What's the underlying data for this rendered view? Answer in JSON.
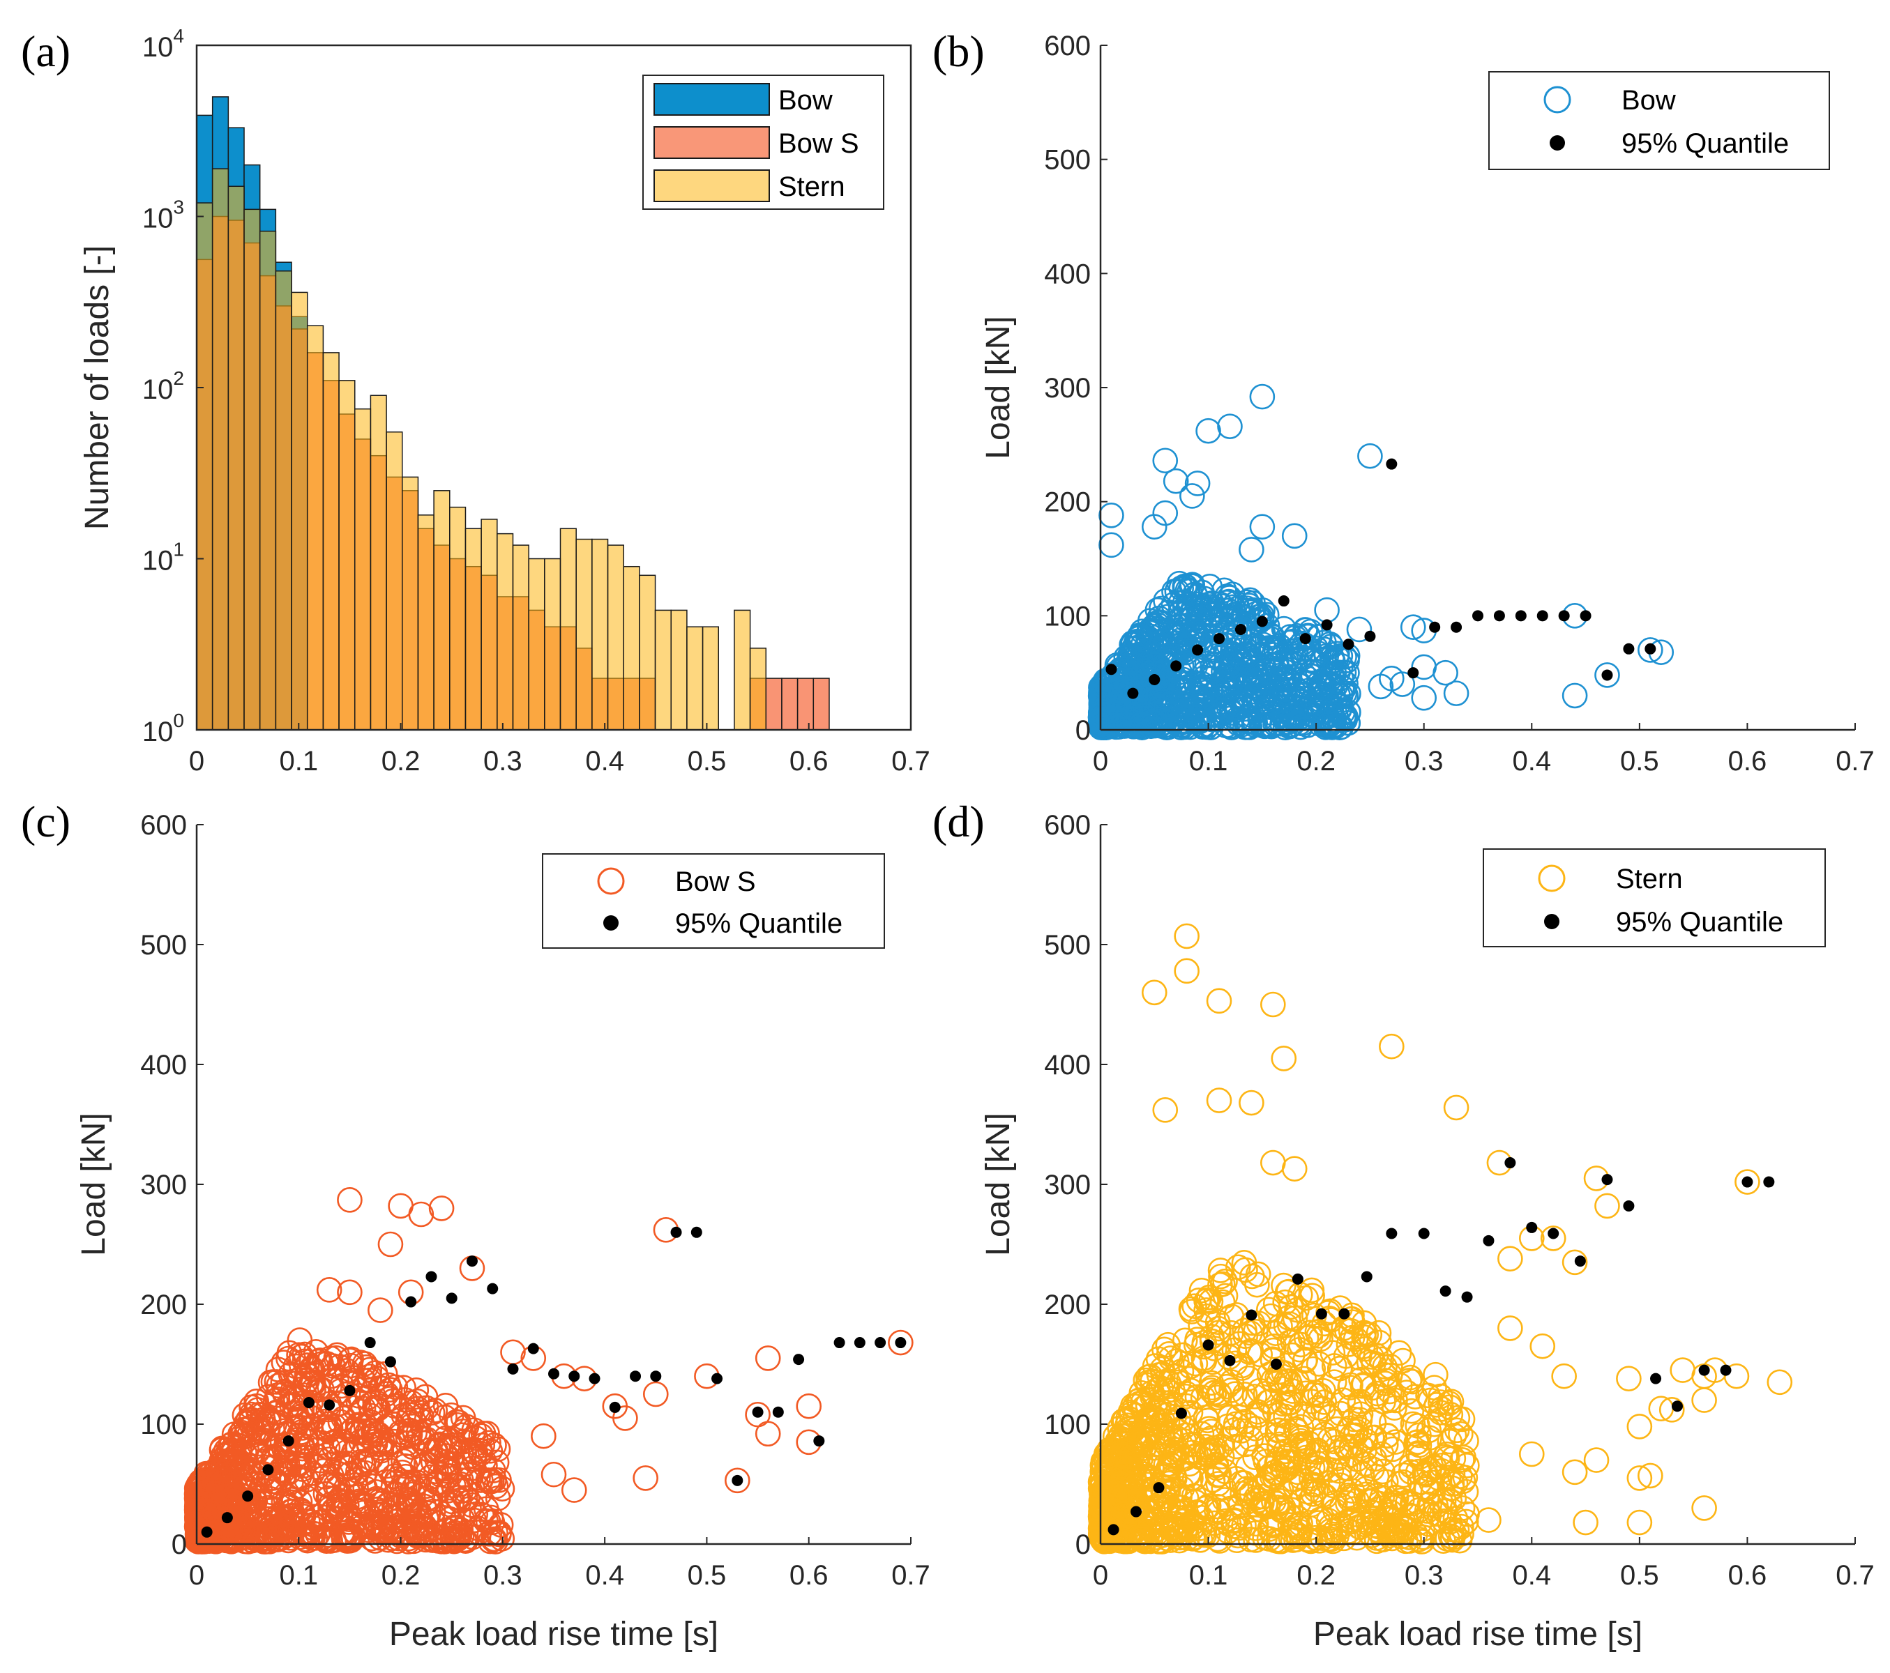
{
  "chart_data": [
    {
      "panel": "(a)",
      "type": "bar",
      "subtype": "histogram",
      "ylog": true,
      "xlabel": "",
      "ylabel": "Number of loads [-]",
      "xlim": [
        0,
        0.7
      ],
      "ylim": [
        1,
        10000
      ],
      "xticks": [
        0,
        0.1,
        0.2,
        0.3,
        0.4,
        0.5,
        0.6,
        0.7
      ],
      "xtick_labels": [
        "0",
        "0.1",
        "0.2",
        "0.3",
        "0.4",
        "0.5",
        "0.6",
        "0.7"
      ],
      "ytick_labels": [
        {
          "base": "10",
          "exp": "0"
        },
        {
          "base": "10",
          "exp": "1"
        },
        {
          "base": "10",
          "exp": "2"
        },
        {
          "base": "10",
          "exp": "3"
        },
        {
          "base": "10",
          "exp": "4"
        }
      ],
      "bin_width": 0.0155,
      "bin_edges_start": 0,
      "series": [
        {
          "name": "Bow",
          "color": "#0d8fcc",
          "values": [
            3900,
            5000,
            3300,
            2000,
            1100,
            540,
            260,
            0,
            0,
            0,
            0,
            0,
            0,
            0,
            0,
            0,
            0,
            0,
            0,
            0,
            0,
            0,
            0,
            0,
            0,
            0,
            0,
            0,
            0,
            0,
            0,
            0,
            0,
            0,
            0,
            0,
            0,
            0,
            0,
            0
          ]
        },
        {
          "name": "Bow S",
          "color": "#f66b3e",
          "values": [
            560,
            1000,
            950,
            700,
            450,
            300,
            220,
            160,
            110,
            70,
            50,
            40,
            30,
            25,
            15,
            12,
            10,
            9,
            8,
            6,
            6,
            5,
            4,
            4,
            3,
            2,
            2,
            2,
            2,
            0,
            0,
            0,
            0,
            0,
            0,
            2,
            2,
            2,
            2,
            2
          ]
        },
        {
          "name": "Stern",
          "color": "#fdb715",
          "values": [
            1200,
            1900,
            1500,
            1100,
            820,
            480,
            360,
            230,
            160,
            110,
            75,
            90,
            55,
            30,
            18,
            25,
            20,
            15,
            17,
            14,
            12,
            10,
            10,
            15,
            13,
            13,
            12,
            9,
            8,
            5,
            5,
            4,
            4,
            0,
            5,
            3,
            0,
            0,
            0,
            0
          ]
        }
      ],
      "legend": {
        "position": "top-right",
        "entries": [
          "Bow",
          "Bow S",
          "Stern"
        ]
      }
    },
    {
      "panel": "(b)",
      "type": "scatter",
      "xlabel": "",
      "ylabel": "Load [kN]",
      "xlim": [
        0,
        0.7
      ],
      "ylim": [
        0,
        600
      ],
      "xticks": [
        0,
        0.1,
        0.2,
        0.3,
        0.4,
        0.5,
        0.6,
        0.7
      ],
      "xtick_labels": [
        "0",
        "0.1",
        "0.2",
        "0.3",
        "0.4",
        "0.5",
        "0.6",
        "0.7"
      ],
      "yticks": [
        0,
        100,
        200,
        300,
        400,
        500,
        600
      ],
      "ytick_labels": [
        "0",
        "100",
        "200",
        "300",
        "400",
        "500",
        "600"
      ],
      "series_color": "#1e91d2",
      "cloud": {
        "n": 1000,
        "tmax": 0.23,
        "ymax": 140,
        "seed": 11
      },
      "outliers": [
        [
          0.15,
          292
        ],
        [
          0.1,
          262
        ],
        [
          0.12,
          266
        ],
        [
          0.06,
          236
        ],
        [
          0.25,
          240
        ],
        [
          0.07,
          218
        ],
        [
          0.09,
          216
        ],
        [
          0.085,
          205
        ],
        [
          0.01,
          188
        ],
        [
          0.06,
          190
        ],
        [
          0.05,
          178
        ],
        [
          0.15,
          178
        ],
        [
          0.18,
          170
        ],
        [
          0.14,
          158
        ],
        [
          0.01,
          162
        ],
        [
          0.21,
          105
        ],
        [
          0.24,
          88
        ],
        [
          0.29,
          90
        ],
        [
          0.3,
          87
        ],
        [
          0.3,
          55
        ],
        [
          0.32,
          50
        ],
        [
          0.33,
          32
        ],
        [
          0.3,
          28
        ],
        [
          0.27,
          45
        ],
        [
          0.44,
          30
        ],
        [
          0.44,
          100
        ],
        [
          0.47,
          48
        ],
        [
          0.51,
          70
        ],
        [
          0.52,
          68
        ],
        [
          0.26,
          38
        ],
        [
          0.28,
          40
        ]
      ],
      "quantile_name": "95% Quantile",
      "quantile": [
        [
          0.01,
          53
        ],
        [
          0.03,
          32
        ],
        [
          0.05,
          44
        ],
        [
          0.07,
          56
        ],
        [
          0.09,
          70
        ],
        [
          0.11,
          80
        ],
        [
          0.13,
          88
        ],
        [
          0.15,
          95
        ],
        [
          0.17,
          113
        ],
        [
          0.19,
          80
        ],
        [
          0.21,
          92
        ],
        [
          0.23,
          75
        ],
        [
          0.25,
          82
        ],
        [
          0.27,
          233
        ],
        [
          0.29,
          50
        ],
        [
          0.31,
          90
        ],
        [
          0.33,
          90
        ],
        [
          0.35,
          100
        ],
        [
          0.37,
          100
        ],
        [
          0.39,
          100
        ],
        [
          0.41,
          100
        ],
        [
          0.43,
          100
        ],
        [
          0.45,
          100
        ],
        [
          0.47,
          48
        ],
        [
          0.49,
          71
        ],
        [
          0.51,
          71
        ]
      ],
      "legend": {
        "position": "top-right",
        "entries": [
          "Bow",
          "95% Quantile"
        ]
      }
    },
    {
      "panel": "(c)",
      "type": "scatter",
      "xlabel": "Peak load rise time [s]",
      "ylabel": "Load [kN]",
      "xlim": [
        0,
        0.7
      ],
      "ylim": [
        0,
        600
      ],
      "xticks": [
        0,
        0.1,
        0.2,
        0.3,
        0.4,
        0.5,
        0.6,
        0.7
      ],
      "xtick_labels": [
        "0",
        "0.1",
        "0.2",
        "0.3",
        "0.4",
        "0.5",
        "0.6",
        "0.7"
      ],
      "yticks": [
        0,
        100,
        200,
        300,
        400,
        500,
        600
      ],
      "ytick_labels": [
        "0",
        "100",
        "200",
        "300",
        "400",
        "500",
        "600"
      ],
      "series_color": "#f25a24",
      "cloud": {
        "n": 1100,
        "tmax": 0.3,
        "ymax": 180,
        "seed": 23
      },
      "outliers": [
        [
          0.15,
          287
        ],
        [
          0.2,
          282
        ],
        [
          0.22,
          275
        ],
        [
          0.24,
          280
        ],
        [
          0.19,
          250
        ],
        [
          0.27,
          230
        ],
        [
          0.46,
          262
        ],
        [
          0.21,
          210
        ],
        [
          0.13,
          212
        ],
        [
          0.15,
          210
        ],
        [
          0.18,
          195
        ],
        [
          0.31,
          160
        ],
        [
          0.33,
          155
        ],
        [
          0.36,
          140
        ],
        [
          0.38,
          138
        ],
        [
          0.41,
          115
        ],
        [
          0.42,
          105
        ],
        [
          0.44,
          55
        ],
        [
          0.45,
          125
        ],
        [
          0.5,
          140
        ],
        [
          0.53,
          53
        ],
        [
          0.55,
          108
        ],
        [
          0.56,
          92
        ],
        [
          0.56,
          155
        ],
        [
          0.6,
          115
        ],
        [
          0.6,
          85
        ],
        [
          0.69,
          168
        ],
        [
          0.35,
          58
        ],
        [
          0.37,
          45
        ],
        [
          0.34,
          90
        ]
      ],
      "quantile_name": "95% Quantile",
      "quantile": [
        [
          0.01,
          10
        ],
        [
          0.03,
          22
        ],
        [
          0.05,
          40
        ],
        [
          0.07,
          62
        ],
        [
          0.09,
          86
        ],
        [
          0.11,
          118
        ],
        [
          0.13,
          116
        ],
        [
          0.15,
          128
        ],
        [
          0.17,
          168
        ],
        [
          0.19,
          152
        ],
        [
          0.21,
          202
        ],
        [
          0.23,
          223
        ],
        [
          0.25,
          205
        ],
        [
          0.27,
          236
        ],
        [
          0.29,
          213
        ],
        [
          0.31,
          146
        ],
        [
          0.33,
          163
        ],
        [
          0.35,
          142
        ],
        [
          0.37,
          140
        ],
        [
          0.39,
          138
        ],
        [
          0.41,
          114
        ],
        [
          0.43,
          140
        ],
        [
          0.45,
          140
        ],
        [
          0.47,
          260
        ],
        [
          0.49,
          260
        ],
        [
          0.51,
          138
        ],
        [
          0.53,
          53
        ],
        [
          0.55,
          110
        ],
        [
          0.57,
          110
        ],
        [
          0.59,
          154
        ],
        [
          0.61,
          86
        ],
        [
          0.63,
          168
        ],
        [
          0.65,
          168
        ],
        [
          0.67,
          168
        ],
        [
          0.69,
          168
        ]
      ],
      "legend": {
        "position": "top-right",
        "entries": [
          "Bow S",
          "95% Quantile"
        ]
      }
    },
    {
      "panel": "(d)",
      "type": "scatter",
      "xlabel": "Peak load rise time [s]",
      "ylabel": "Load [kN]",
      "xlim": [
        0,
        0.7
      ],
      "ylim": [
        0,
        600
      ],
      "xticks": [
        0,
        0.1,
        0.2,
        0.3,
        0.4,
        0.5,
        0.6,
        0.7
      ],
      "xtick_labels": [
        "0",
        "0.1",
        "0.2",
        "0.3",
        "0.4",
        "0.5",
        "0.6",
        "0.7"
      ],
      "yticks": [
        0,
        100,
        200,
        300,
        400,
        500,
        600
      ],
      "ytick_labels": [
        "0",
        "100",
        "200",
        "300",
        "400",
        "500",
        "600"
      ],
      "series_color": "#fdb515",
      "cloud": {
        "n": 1200,
        "tmax": 0.34,
        "ymax": 260,
        "seed": 37
      },
      "outliers": [
        [
          0.08,
          507
        ],
        [
          0.08,
          478
        ],
        [
          0.05,
          460
        ],
        [
          0.11,
          453
        ],
        [
          0.16,
          450
        ],
        [
          0.27,
          415
        ],
        [
          0.17,
          405
        ],
        [
          0.33,
          364
        ],
        [
          0.11,
          370
        ],
        [
          0.14,
          368
        ],
        [
          0.06,
          362
        ],
        [
          0.16,
          318
        ],
        [
          0.18,
          313
        ],
        [
          0.37,
          318
        ],
        [
          0.46,
          305
        ],
        [
          0.6,
          302
        ],
        [
          0.47,
          282
        ],
        [
          0.4,
          255
        ],
        [
          0.42,
          255
        ],
        [
          0.44,
          235
        ],
        [
          0.38,
          238
        ],
        [
          0.38,
          180
        ],
        [
          0.41,
          165
        ],
        [
          0.43,
          140
        ],
        [
          0.44,
          60
        ],
        [
          0.46,
          70
        ],
        [
          0.49,
          138
        ],
        [
          0.5,
          55
        ],
        [
          0.5,
          98
        ],
        [
          0.51,
          57
        ],
        [
          0.52,
          113
        ],
        [
          0.53,
          112
        ],
        [
          0.54,
          145
        ],
        [
          0.56,
          120
        ],
        [
          0.56,
          140
        ],
        [
          0.57,
          145
        ],
        [
          0.59,
          140
        ],
        [
          0.56,
          30
        ],
        [
          0.5,
          18
        ],
        [
          0.63,
          135
        ],
        [
          0.36,
          20
        ],
        [
          0.34,
          25
        ],
        [
          0.45,
          18
        ],
        [
          0.4,
          75
        ]
      ],
      "quantile_name": "95% Quantile",
      "quantile": [
        [
          0.012,
          12
        ],
        [
          0.033,
          27
        ],
        [
          0.054,
          47
        ],
        [
          0.075,
          109
        ],
        [
          0.1,
          166
        ],
        [
          0.12,
          153
        ],
        [
          0.14,
          191
        ],
        [
          0.163,
          150
        ],
        [
          0.183,
          221
        ],
        [
          0.205,
          192
        ],
        [
          0.226,
          192
        ],
        [
          0.247,
          223
        ],
        [
          0.27,
          259
        ],
        [
          0.3,
          259
        ],
        [
          0.32,
          211
        ],
        [
          0.34,
          206
        ],
        [
          0.36,
          253
        ],
        [
          0.38,
          318
        ],
        [
          0.4,
          264
        ],
        [
          0.42,
          259
        ],
        [
          0.445,
          236
        ],
        [
          0.47,
          304
        ],
        [
          0.49,
          282
        ],
        [
          0.515,
          138
        ],
        [
          0.535,
          115
        ],
        [
          0.56,
          145
        ],
        [
          0.58,
          145
        ],
        [
          0.6,
          302
        ],
        [
          0.62,
          302
        ]
      ],
      "legend": {
        "position": "top-right",
        "entries": [
          "Stern",
          "95% Quantile"
        ]
      }
    }
  ]
}
